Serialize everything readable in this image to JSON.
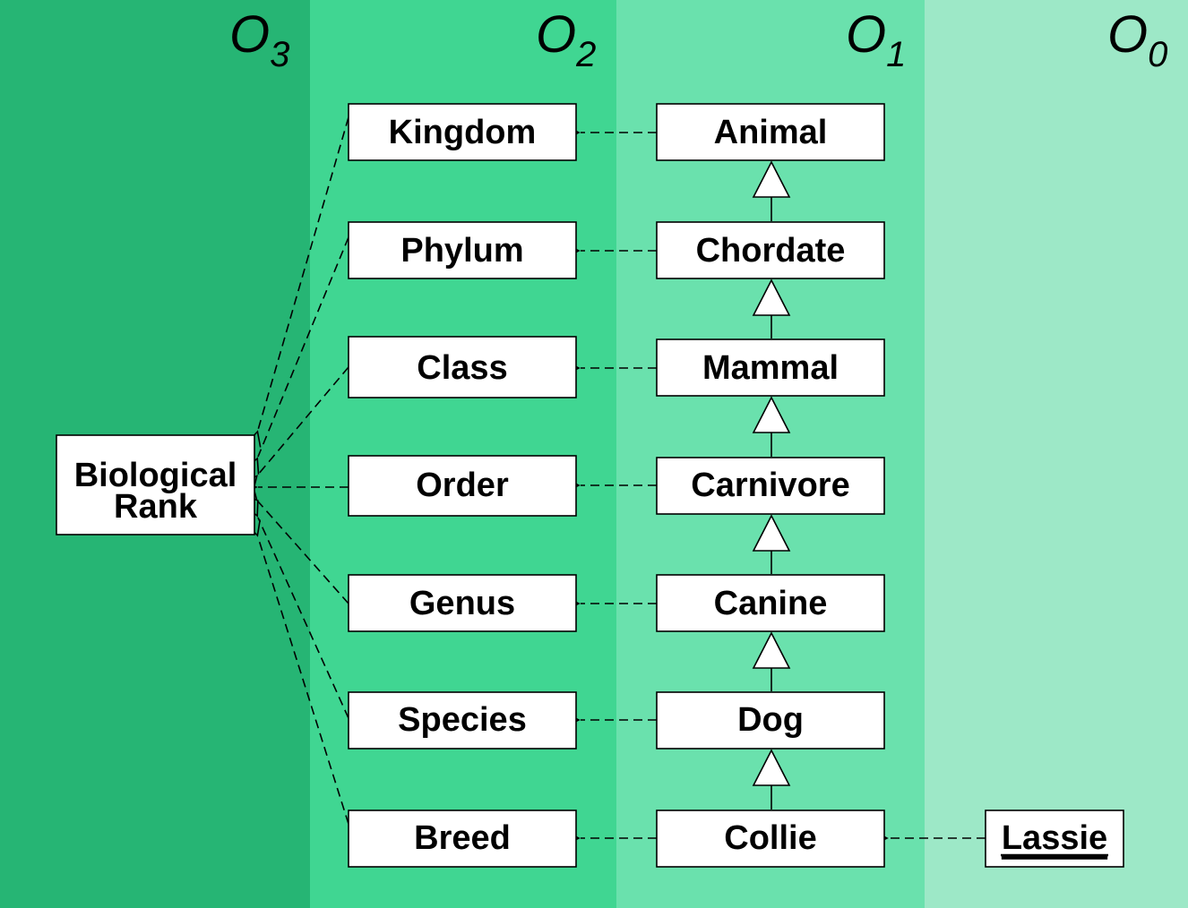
{
  "levels": [
    {
      "name": "O",
      "subscript": "3",
      "color": "#26b574"
    },
    {
      "name": "O",
      "subscript": "2",
      "color": "#40d692"
    },
    {
      "name": "O",
      "subscript": "1",
      "color": "#6ae1ad"
    },
    {
      "name": "O",
      "subscript": "0",
      "color": "#9de8c7"
    }
  ],
  "meta_class": {
    "line1": "Biological",
    "line2": "Rank"
  },
  "ranks": [
    "Kingdom",
    "Phylum",
    "Class",
    "Order",
    "Genus",
    "Species",
    "Breed"
  ],
  "taxa": [
    "Animal",
    "Chordate",
    "Mammal",
    "Carnivore",
    "Canine",
    "Dog",
    "Collie"
  ],
  "instance": {
    "label": "Lassie",
    "underlined": true
  },
  "relations": {
    "instance_of": "dashed arrow with open arrowhead",
    "generalization": "solid line with hollow triangle"
  }
}
